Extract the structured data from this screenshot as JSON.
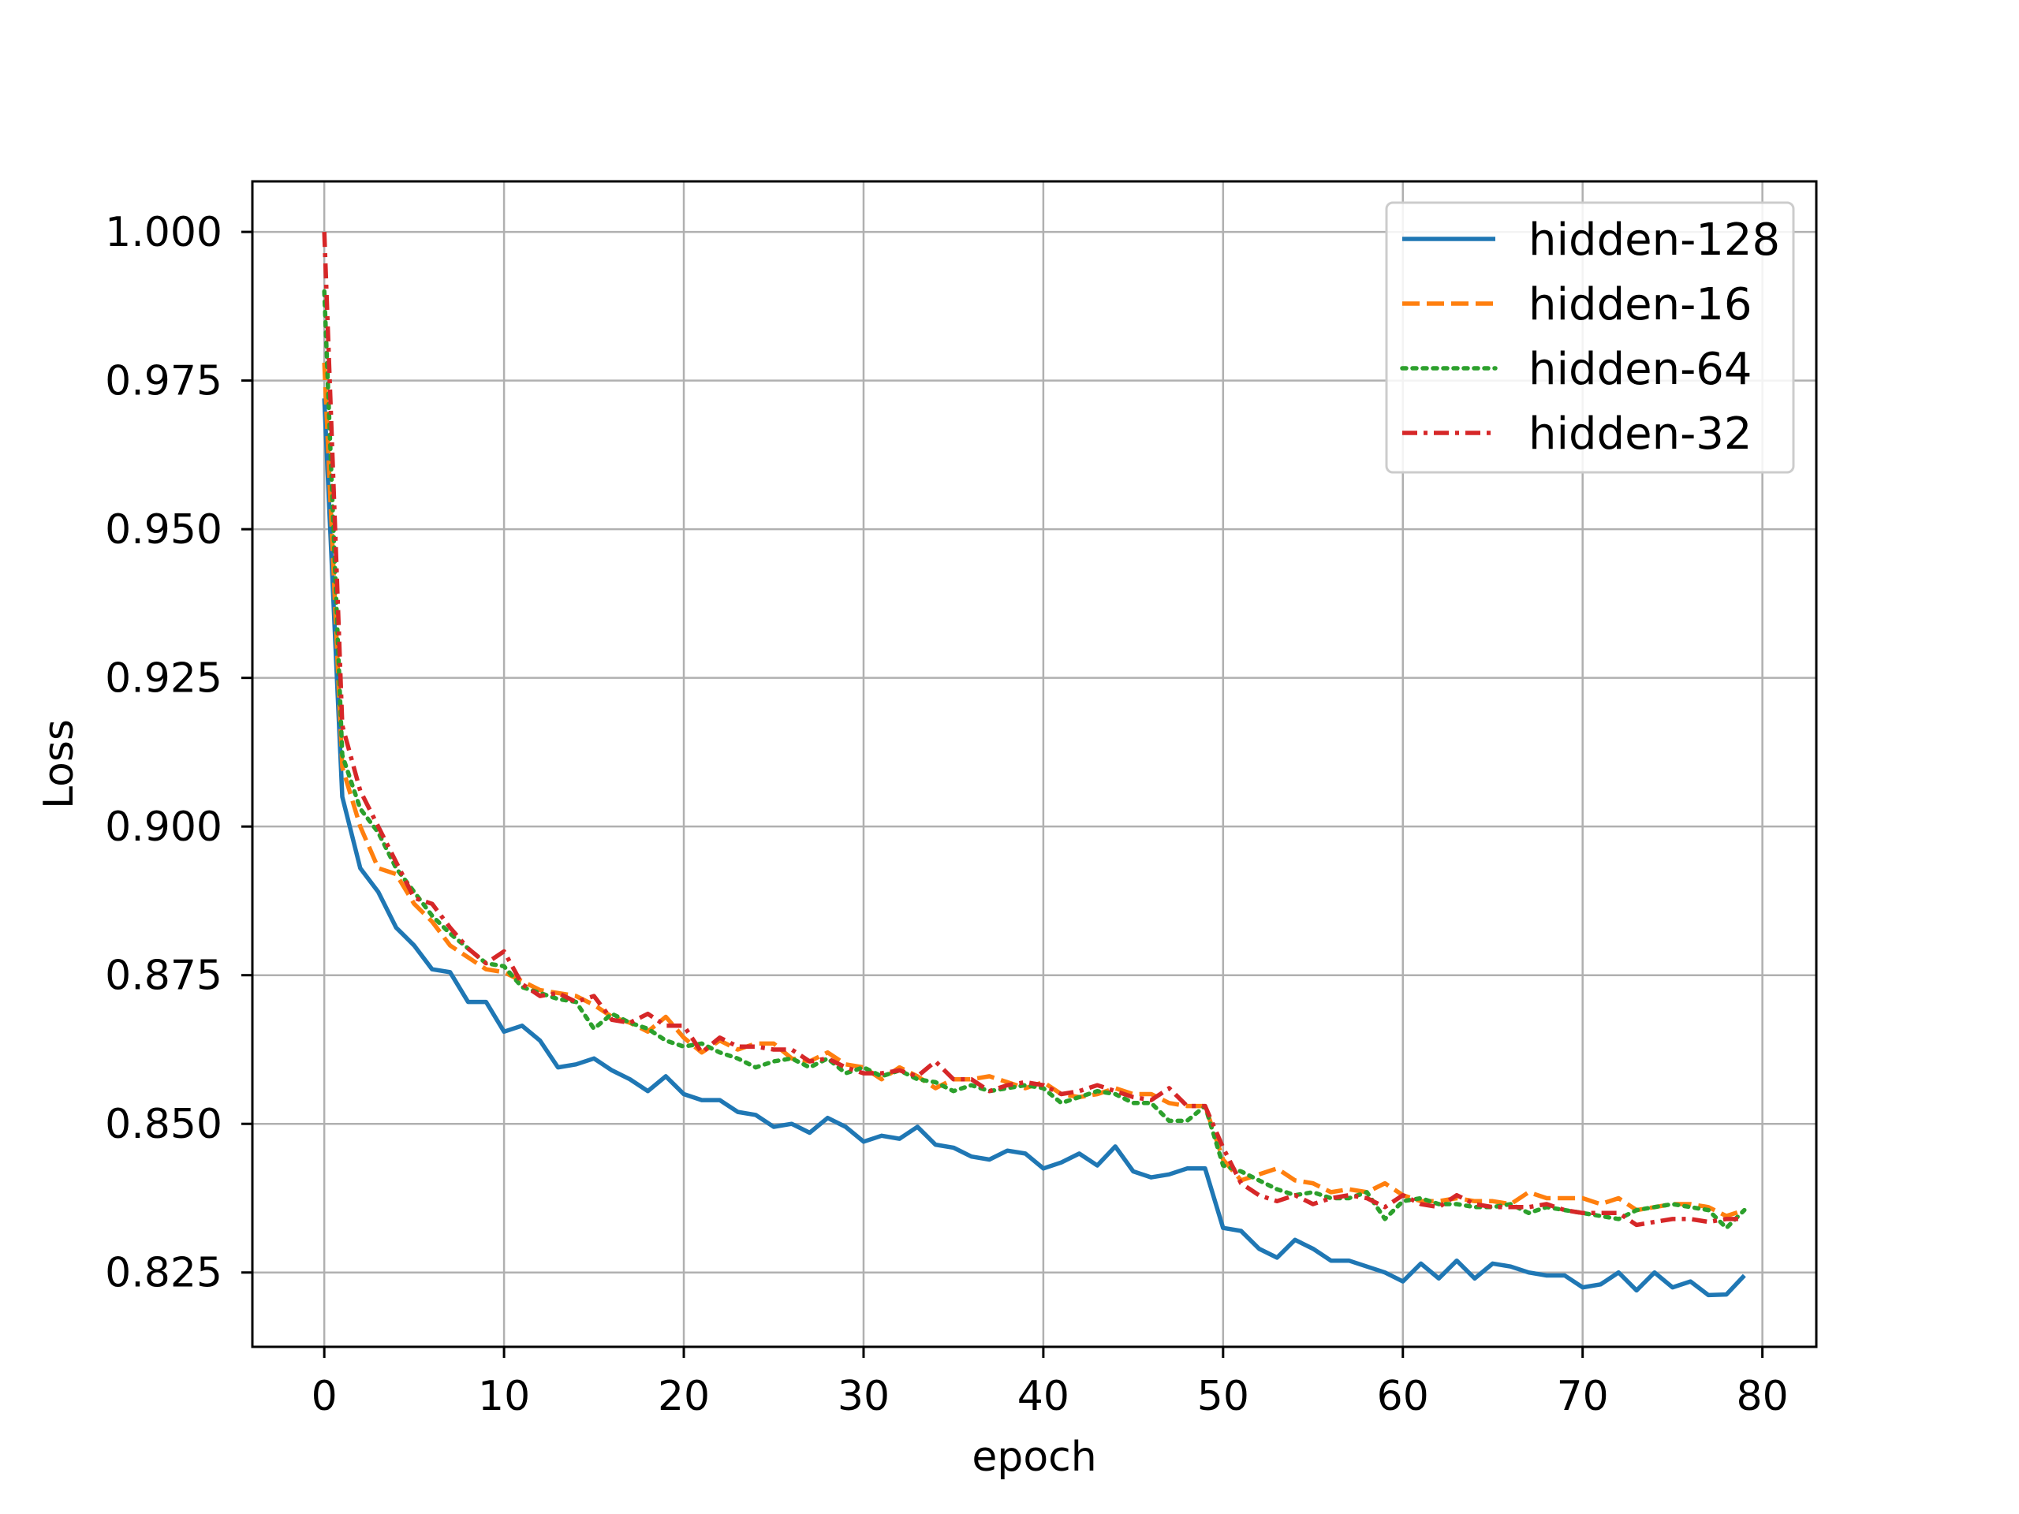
{
  "chart_data": {
    "type": "line",
    "title": "",
    "xlabel": "epoch",
    "ylabel": "Loss",
    "xlim": [
      -4,
      83
    ],
    "ylim": [
      0.8125,
      1.0085
    ],
    "xticks": [
      0,
      10,
      20,
      30,
      40,
      50,
      60,
      70,
      80
    ],
    "xtick_labels": [
      "0",
      "10",
      "20",
      "30",
      "40",
      "50",
      "60",
      "70",
      "80"
    ],
    "yticks": [
      0.825,
      0.85,
      0.875,
      0.9,
      0.925,
      0.95,
      0.975,
      1.0
    ],
    "ytick_labels": [
      "0.825",
      "0.850",
      "0.875",
      "0.900",
      "0.925",
      "0.950",
      "0.975",
      "1.000"
    ],
    "grid": true,
    "legend_position": "top-right",
    "x": [
      0,
      1,
      2,
      3,
      4,
      5,
      6,
      7,
      8,
      9,
      10,
      11,
      12,
      13,
      14,
      15,
      16,
      17,
      18,
      19,
      20,
      21,
      22,
      23,
      24,
      25,
      26,
      27,
      28,
      29,
      30,
      31,
      32,
      33,
      34,
      35,
      36,
      37,
      38,
      39,
      40,
      41,
      42,
      43,
      44,
      45,
      46,
      47,
      48,
      49,
      50,
      51,
      52,
      53,
      54,
      55,
      56,
      57,
      58,
      59,
      60,
      61,
      62,
      63,
      64,
      65,
      66,
      67,
      68,
      69,
      70,
      71,
      72,
      73,
      74,
      75,
      76,
      77,
      78,
      79
    ],
    "series": [
      {
        "name": "hidden-128",
        "color": "#1f77b4",
        "dash": "solid",
        "values": [
          0.972,
          0.905,
          0.893,
          0.889,
          0.883,
          0.88,
          0.876,
          0.8755,
          0.8705,
          0.8705,
          0.8655,
          0.8665,
          0.864,
          0.8595,
          0.86,
          0.861,
          0.859,
          0.8575,
          0.8555,
          0.858,
          0.855,
          0.854,
          0.854,
          0.852,
          0.8515,
          0.8495,
          0.85,
          0.8485,
          0.851,
          0.8495,
          0.847,
          0.848,
          0.8475,
          0.8495,
          0.8465,
          0.846,
          0.8445,
          0.844,
          0.8455,
          0.845,
          0.8425,
          0.8435,
          0.845,
          0.843,
          0.8462,
          0.842,
          0.841,
          0.8415,
          0.8425,
          0.8425,
          0.8325,
          0.832,
          0.829,
          0.8275,
          0.8305,
          0.829,
          0.827,
          0.827,
          0.826,
          0.825,
          0.8235,
          0.8265,
          0.824,
          0.827,
          0.824,
          0.8265,
          0.826,
          0.825,
          0.8245,
          0.8245,
          0.8225,
          0.823,
          0.825,
          0.822,
          0.825,
          0.8225,
          0.8235,
          0.8212,
          0.8213,
          0.8245
        ]
      },
      {
        "name": "hidden-16",
        "color": "#ff7f0e",
        "dash": "dashed",
        "values": [
          0.978,
          0.91,
          0.9,
          0.893,
          0.892,
          0.887,
          0.884,
          0.88,
          0.878,
          0.876,
          0.8755,
          0.874,
          0.8725,
          0.872,
          0.8715,
          0.87,
          0.868,
          0.867,
          0.8655,
          0.868,
          0.8645,
          0.862,
          0.864,
          0.8625,
          0.8635,
          0.8635,
          0.861,
          0.8605,
          0.862,
          0.86,
          0.8595,
          0.8575,
          0.8595,
          0.858,
          0.856,
          0.8575,
          0.8575,
          0.858,
          0.857,
          0.856,
          0.857,
          0.855,
          0.8545,
          0.855,
          0.856,
          0.855,
          0.855,
          0.8535,
          0.853,
          0.853,
          0.844,
          0.8405,
          0.8415,
          0.8425,
          0.8405,
          0.84,
          0.8385,
          0.839,
          0.8385,
          0.84,
          0.838,
          0.837,
          0.837,
          0.8375,
          0.837,
          0.837,
          0.8365,
          0.8385,
          0.8375,
          0.8375,
          0.8375,
          0.8365,
          0.8375,
          0.8355,
          0.836,
          0.8365,
          0.8365,
          0.836,
          0.8345,
          0.8355
        ]
      },
      {
        "name": "hidden-64",
        "color": "#2ca02c",
        "dash": "dotted",
        "values": [
          0.99,
          0.912,
          0.903,
          0.899,
          0.893,
          0.889,
          0.885,
          0.882,
          0.8795,
          0.877,
          0.8765,
          0.873,
          0.872,
          0.871,
          0.8705,
          0.866,
          0.8685,
          0.867,
          0.866,
          0.864,
          0.863,
          0.8635,
          0.862,
          0.861,
          0.8595,
          0.8605,
          0.861,
          0.8595,
          0.861,
          0.8585,
          0.8595,
          0.858,
          0.859,
          0.8575,
          0.857,
          0.8555,
          0.8565,
          0.8555,
          0.856,
          0.8565,
          0.856,
          0.8535,
          0.8545,
          0.8555,
          0.855,
          0.8535,
          0.8535,
          0.8505,
          0.8505,
          0.853,
          0.843,
          0.842,
          0.8405,
          0.839,
          0.838,
          0.8385,
          0.8375,
          0.8375,
          0.8385,
          0.834,
          0.837,
          0.8375,
          0.8365,
          0.8365,
          0.836,
          0.836,
          0.8365,
          0.835,
          0.836,
          0.8355,
          0.835,
          0.8345,
          0.834,
          0.8355,
          0.836,
          0.8365,
          0.836,
          0.8355,
          0.8325,
          0.8355
        ]
      },
      {
        "name": "hidden-32",
        "color": "#d62728",
        "dash": "dashdot",
        "values": [
          1.0,
          0.917,
          0.906,
          0.9,
          0.894,
          0.888,
          0.887,
          0.883,
          0.8795,
          0.877,
          0.879,
          0.8735,
          0.8715,
          0.872,
          0.8705,
          0.8715,
          0.8675,
          0.867,
          0.8685,
          0.8665,
          0.8665,
          0.862,
          0.8645,
          0.863,
          0.863,
          0.8625,
          0.8625,
          0.8605,
          0.861,
          0.8595,
          0.8585,
          0.8585,
          0.859,
          0.858,
          0.8605,
          0.8575,
          0.8575,
          0.8555,
          0.8565,
          0.857,
          0.8565,
          0.855,
          0.8555,
          0.8565,
          0.8555,
          0.8545,
          0.854,
          0.856,
          0.853,
          0.853,
          0.846,
          0.84,
          0.838,
          0.837,
          0.838,
          0.8365,
          0.8375,
          0.838,
          0.8375,
          0.836,
          0.838,
          0.8365,
          0.836,
          0.838,
          0.8365,
          0.836,
          0.836,
          0.836,
          0.8365,
          0.8355,
          0.835,
          0.835,
          0.835,
          0.833,
          0.8335,
          0.834,
          0.834,
          0.8335,
          0.834,
          0.834
        ]
      }
    ]
  }
}
